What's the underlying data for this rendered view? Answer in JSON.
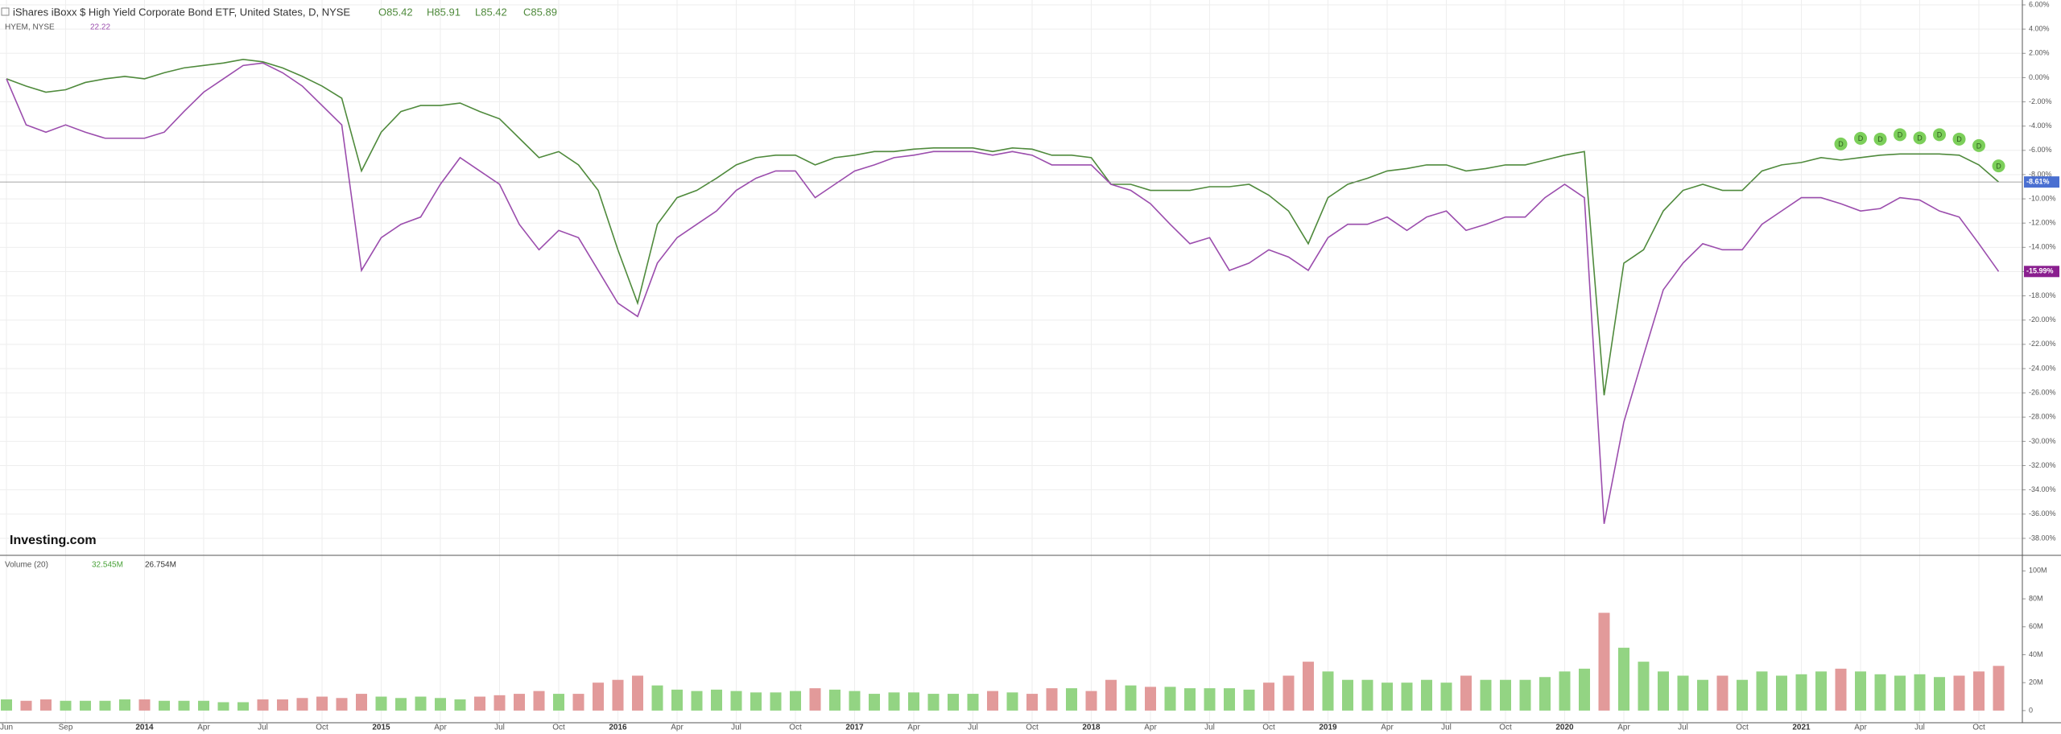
{
  "chart_data": {
    "type": "line",
    "categories": [
      "Jun",
      null,
      null,
      "Sep",
      null,
      null,
      null,
      "2014",
      null,
      null,
      "Apr",
      null,
      null,
      "Jul",
      null,
      null,
      "Oct",
      null,
      null,
      "2015",
      null,
      null,
      "Apr",
      null,
      null,
      "Jul",
      null,
      null,
      "Oct",
      null,
      null,
      "2016",
      null,
      null,
      "Apr",
      null,
      null,
      "Jul",
      null,
      null,
      "Oct",
      null,
      null,
      "2017",
      null,
      null,
      "Apr",
      null,
      null,
      "Jul",
      null,
      null,
      "Oct",
      null,
      null,
      "2018",
      null,
      null,
      "Apr",
      null,
      null,
      "Jul",
      null,
      null,
      "Oct",
      null,
      null,
      "2019",
      null,
      null,
      "Apr",
      null,
      null,
      "Jul",
      null,
      null,
      "Oct",
      null,
      null,
      "2020",
      null,
      null,
      "Apr",
      null,
      null,
      "Jul",
      null,
      null,
      "Oct",
      null,
      null,
      "2021",
      null,
      null,
      "Apr",
      null,
      null,
      "Jul",
      null,
      null,
      "Oct",
      null
    ],
    "ohlc": [
      "O85.42",
      "H85.91",
      "L85.42",
      "C85.89"
    ],
    "series": [
      {
        "name": "iShares iBoxx $ High Yield Corporate Bond ETF, United States, D, NYSE",
        "color": "#4f8a3c",
        "tag_color": "#4a6fd1",
        "values": [
          -0.1,
          -0.7,
          -1.2,
          -1.0,
          -0.4,
          -0.1,
          0.1,
          -0.1,
          0.4,
          0.8,
          1.0,
          1.2,
          1.5,
          1.3,
          0.8,
          0.1,
          -0.7,
          -1.7,
          -7.7,
          -4.5,
          -2.8,
          -2.3,
          -2.3,
          -2.1,
          -2.8,
          -3.4,
          -5.0,
          -6.6,
          -6.1,
          -7.2,
          -9.3,
          -14.2,
          -18.6,
          -12.1,
          -9.9,
          -9.3,
          -8.3,
          -7.2,
          -6.6,
          -6.4,
          -6.4,
          -7.2,
          -6.6,
          -6.4,
          -6.1,
          -6.1,
          -5.9,
          -5.8,
          -5.8,
          -5.8,
          -6.1,
          -5.8,
          -5.9,
          -6.4,
          -6.4,
          -6.6,
          -8.8,
          -8.8,
          -9.3,
          -9.3,
          -9.3,
          -9.0,
          -9.0,
          -8.8,
          -9.7,
          -11.0,
          -13.7,
          -9.9,
          -8.8,
          -8.3,
          -7.7,
          -7.5,
          -7.2,
          -7.2,
          -7.7,
          -7.5,
          -7.2,
          -7.2,
          -6.8,
          -6.4,
          -6.1,
          -26.2,
          -15.3,
          -14.2,
          -11.0,
          -9.3,
          -8.8,
          -9.3,
          -9.3,
          -7.7,
          -7.2,
          -7.0,
          -6.6,
          -6.8,
          -6.6,
          -6.4,
          -6.3,
          -6.3,
          -6.3,
          -6.4,
          -7.2,
          -8.61
        ],
        "value_labels": [
          null,
          null,
          null,
          null,
          null,
          null,
          null,
          null,
          null,
          null,
          null,
          null,
          null,
          null,
          null,
          null,
          null,
          null,
          null,
          null,
          null,
          null,
          null,
          null,
          null,
          null,
          null,
          null,
          null,
          null,
          null,
          null,
          null,
          null,
          null,
          null,
          null,
          null,
          null,
          null,
          null,
          null,
          null,
          null,
          null,
          null,
          null,
          null,
          null,
          null,
          null,
          null,
          null,
          null,
          null,
          null,
          null,
          null,
          null,
          null,
          null,
          null,
          null,
          null,
          null,
          null,
          null,
          null,
          null,
          null,
          null,
          null,
          null,
          null,
          null,
          null,
          null,
          null,
          null,
          null,
          null,
          null,
          null,
          null,
          null,
          null,
          null,
          null,
          null,
          null,
          null,
          null,
          null,
          null,
          null,
          null,
          null,
          null,
          null,
          null,
          null,
          "-8.61%"
        ]
      },
      {
        "name": "HYEM, NYSE",
        "color": "#9b4dad",
        "tag_color": "#8a1f8f",
        "last_price": 22.22,
        "values": [
          -0.1,
          -3.9,
          -4.5,
          -3.9,
          -4.5,
          -5.0,
          -5.0,
          -5.0,
          -4.5,
          -2.8,
          -1.2,
          -0.1,
          1.0,
          1.2,
          0.4,
          -0.7,
          -2.3,
          -3.9,
          -15.9,
          -13.2,
          -12.1,
          -11.5,
          -8.8,
          -6.6,
          -7.7,
          -8.8,
          -12.1,
          -14.2,
          -12.6,
          -13.2,
          -15.9,
          -18.6,
          -19.7,
          -15.3,
          -13.2,
          -12.1,
          -11.0,
          -9.3,
          -8.3,
          -7.7,
          -7.7,
          -9.9,
          -8.8,
          -7.7,
          -7.2,
          -6.6,
          -6.4,
          -6.1,
          -6.1,
          -6.1,
          -6.4,
          -6.1,
          -6.4,
          -7.2,
          -7.2,
          -7.2,
          -8.8,
          -9.3,
          -10.4,
          -12.1,
          -13.7,
          -13.2,
          -15.9,
          -15.3,
          -14.2,
          -14.8,
          -15.9,
          -13.2,
          -12.1,
          -12.1,
          -11.5,
          -12.6,
          -11.5,
          -11.0,
          -12.6,
          -12.1,
          -11.5,
          -11.5,
          -9.9,
          -8.8,
          -9.9,
          -36.8,
          -28.4,
          -22.9,
          -17.5,
          -15.3,
          -13.7,
          -14.2,
          -14.2,
          -12.1,
          -11.0,
          -9.9,
          -9.9,
          -10.4,
          -11.0,
          -10.8,
          -9.9,
          -10.1,
          -11.0,
          -11.5,
          -13.7,
          -15.99
        ],
        "value_labels": [
          null,
          null,
          null,
          null,
          null,
          null,
          null,
          null,
          null,
          null,
          null,
          null,
          null,
          null,
          null,
          null,
          null,
          null,
          null,
          null,
          null,
          null,
          null,
          null,
          null,
          null,
          null,
          null,
          null,
          null,
          null,
          null,
          null,
          null,
          null,
          null,
          null,
          null,
          null,
          null,
          null,
          null,
          null,
          null,
          null,
          null,
          null,
          null,
          null,
          null,
          null,
          null,
          null,
          null,
          null,
          null,
          null,
          null,
          null,
          null,
          null,
          null,
          null,
          null,
          null,
          null,
          null,
          null,
          null,
          null,
          null,
          null,
          null,
          null,
          null,
          null,
          null,
          null,
          null,
          null,
          null,
          null,
          null,
          null,
          null,
          null,
          null,
          null,
          null,
          null,
          null,
          null,
          null,
          null,
          null,
          null,
          null,
          null,
          null,
          null,
          null,
          "-15.99%"
        ]
      }
    ],
    "dividends": [
      null,
      null,
      null,
      null,
      null,
      null,
      null,
      null,
      null,
      null,
      null,
      null,
      null,
      null,
      null,
      null,
      null,
      null,
      null,
      null,
      null,
      null,
      null,
      null,
      null,
      null,
      null,
      null,
      null,
      null,
      null,
      null,
      null,
      null,
      null,
      null,
      null,
      null,
      null,
      null,
      null,
      null,
      null,
      null,
      null,
      null,
      null,
      null,
      null,
      null,
      null,
      null,
      null,
      null,
      null,
      null,
      null,
      null,
      null,
      null,
      null,
      null,
      null,
      null,
      null,
      null,
      null,
      null,
      null,
      null,
      null,
      null,
      null,
      null,
      null,
      null,
      null,
      null,
      null,
      null,
      null,
      null,
      null,
      null,
      null,
      null,
      null,
      null,
      null,
      null,
      null,
      null,
      null,
      "D",
      "D",
      "D",
      "D",
      "D",
      "D",
      "D",
      "D",
      "D"
    ],
    "dividend_color": "#7ccf5a",
    "ylim": [
      -39.4,
      6.4
    ],
    "yticks": [
      {
        "value": 6,
        "label": "6.00%"
      },
      {
        "value": 4,
        "label": "4.00%"
      },
      {
        "value": 2,
        "label": "2.00%"
      },
      {
        "value": 0,
        "label": "0.00%"
      },
      {
        "value": -2,
        "label": "-2.00%"
      },
      {
        "value": -4,
        "label": "-4.00%"
      },
      {
        "value": -6,
        "label": "-6.00%"
      },
      {
        "value": -8,
        "label": "-8.00%"
      },
      {
        "value": -10,
        "label": "-10.00%"
      },
      {
        "value": -12,
        "label": "-12.00%"
      },
      {
        "value": -14,
        "label": "-14.00%"
      },
      {
        "value": -16,
        "label": "-16.00%"
      },
      {
        "value": -18,
        "label": "-18.00%"
      },
      {
        "value": -20,
        "label": "-20.00%"
      },
      {
        "value": -22,
        "label": "-22.00%"
      },
      {
        "value": -24,
        "label": "-24.00%"
      },
      {
        "value": -26,
        "label": "-26.00%"
      },
      {
        "value": -28,
        "label": "-28.00%"
      },
      {
        "value": -30,
        "label": "-30.00%"
      },
      {
        "value": -32,
        "label": "-32.00%"
      },
      {
        "value": -34,
        "label": "-34.00%"
      },
      {
        "value": -36,
        "label": "-36.00%"
      },
      {
        "value": -38,
        "label": "-38.00%"
      }
    ],
    "grid": true,
    "logo": "Investing.com",
    "volume": {
      "type": "bar",
      "name": "Volume (20)",
      "up_color": "#93d483",
      "down_color": "#e29a9a",
      "legend_values": [
        {
          "value": 32545000,
          "label": "32.545M"
        },
        {
          "value": 26754000,
          "label": "26.754M"
        }
      ],
      "values": [
        8000000,
        7000000,
        8000000,
        7000000,
        7000000,
        7000000,
        8000000,
        8000000,
        7000000,
        7000000,
        7000000,
        6000000,
        6000000,
        8000000,
        8000000,
        9000000,
        10000000,
        9000000,
        12000000,
        10000000,
        9000000,
        10000000,
        9000000,
        8000000,
        10000000,
        11000000,
        12000000,
        14000000,
        12000000,
        12000000,
        20000000,
        22000000,
        25000000,
        18000000,
        15000000,
        14000000,
        15000000,
        14000000,
        13000000,
        13000000,
        14000000,
        16000000,
        15000000,
        14000000,
        12000000,
        13000000,
        13000000,
        12000000,
        12000000,
        12000000,
        14000000,
        13000000,
        12000000,
        16000000,
        16000000,
        14000000,
        22000000,
        18000000,
        17000000,
        17000000,
        16000000,
        16000000,
        16000000,
        15000000,
        20000000,
        25000000,
        35000000,
        28000000,
        22000000,
        22000000,
        20000000,
        20000000,
        22000000,
        20000000,
        25000000,
        22000000,
        22000000,
        22000000,
        24000000,
        28000000,
        30000000,
        70000000,
        45000000,
        35000000,
        28000000,
        25000000,
        22000000,
        25000000,
        22000000,
        28000000,
        25000000,
        26000000,
        28000000,
        30000000,
        28000000,
        26000000,
        25000000,
        26000000,
        24000000,
        25000000,
        28000000,
        32000000
      ],
      "ylim": [
        -8700000,
        110000000
      ],
      "yticks": [
        {
          "value": 100000000,
          "label": "100M"
        },
        {
          "value": 80000000,
          "label": "80M"
        },
        {
          "value": 60000000,
          "label": "60M"
        },
        {
          "value": 40000000,
          "label": "40M"
        },
        {
          "value": 20000000,
          "label": "20M"
        },
        0
      ]
    }
  }
}
